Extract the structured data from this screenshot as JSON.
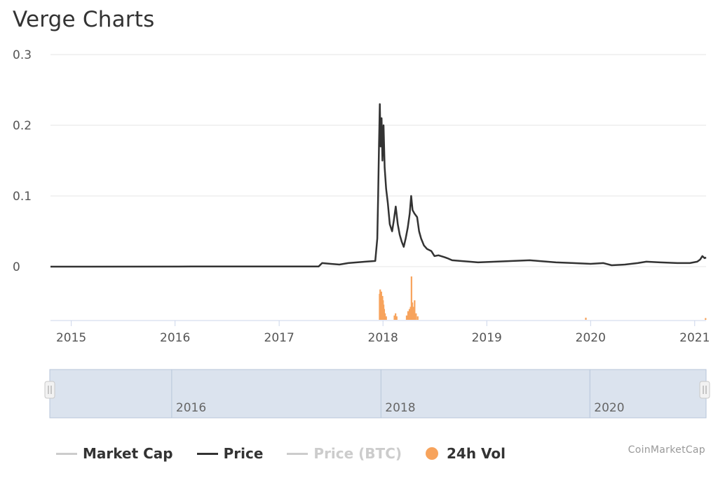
{
  "page": {
    "title": "Verge Charts",
    "credit": "CoinMarketCap"
  },
  "colors": {
    "price": "#333333",
    "volume": "#f7a35c",
    "market_cap": "#cccccc",
    "price_btc": "#cccccc",
    "grid": "#e6e6e6",
    "navigator_fill": "#dbe3ee",
    "navigator_border": "#b7c6d9"
  },
  "legend": {
    "items": [
      {
        "label": "Market Cap",
        "marker": "line",
        "color": "#cccccc",
        "text_color": "#333333"
      },
      {
        "label": "Price",
        "marker": "line",
        "color": "#333333",
        "text_color": "#333333"
      },
      {
        "label": "Price (BTC)",
        "marker": "line",
        "color": "#cccccc",
        "text_color": "#cccccc"
      },
      {
        "label": "24h Vol",
        "marker": "dot",
        "color": "#f7a35c",
        "text_color": "#333333"
      }
    ]
  },
  "navigator": {
    "labels": [
      "2016",
      "2018",
      "2020"
    ],
    "range": [
      "2014-11-01",
      "2021-02-10"
    ]
  },
  "chart_data": {
    "type": "line",
    "title": "Verge Charts",
    "x_axis": {
      "type": "date",
      "range": [
        "2014-10-20",
        "2021-02-10"
      ],
      "ticks": [
        "2015",
        "2016",
        "2017",
        "2018",
        "2019",
        "2020",
        "2021"
      ]
    },
    "y_axis": {
      "range": [
        0,
        0.3
      ],
      "ticks": [
        "0",
        "0.1",
        "0.2",
        "0.3"
      ],
      "grid": true
    },
    "series": [
      {
        "name": "Price",
        "color": "#333333",
        "points": [
          [
            "2014-10-20",
            0.0
          ],
          [
            "2016-03-01",
            0.0002
          ],
          [
            "2017-05-20",
            0.0003
          ],
          [
            "2017-06-01",
            0.005
          ],
          [
            "2017-07-01",
            0.004
          ],
          [
            "2017-08-01",
            0.003
          ],
          [
            "2017-09-01",
            0.005
          ],
          [
            "2017-10-01",
            0.006
          ],
          [
            "2017-11-01",
            0.007
          ],
          [
            "2017-12-05",
            0.008
          ],
          [
            "2017-12-12",
            0.04
          ],
          [
            "2017-12-15",
            0.1
          ],
          [
            "2017-12-18",
            0.17
          ],
          [
            "2017-12-21",
            0.23
          ],
          [
            "2017-12-24",
            0.17
          ],
          [
            "2017-12-27",
            0.21
          ],
          [
            "2017-12-30",
            0.15
          ],
          [
            "2018-01-03",
            0.2
          ],
          [
            "2018-01-07",
            0.14
          ],
          [
            "2018-01-12",
            0.11
          ],
          [
            "2018-01-18",
            0.09
          ],
          [
            "2018-01-25",
            0.06
          ],
          [
            "2018-02-02",
            0.05
          ],
          [
            "2018-02-08",
            0.065
          ],
          [
            "2018-02-15",
            0.085
          ],
          [
            "2018-02-22",
            0.06
          ],
          [
            "2018-03-01",
            0.045
          ],
          [
            "2018-03-08",
            0.035
          ],
          [
            "2018-03-15",
            0.028
          ],
          [
            "2018-03-22",
            0.04
          ],
          [
            "2018-03-29",
            0.055
          ],
          [
            "2018-04-05",
            0.075
          ],
          [
            "2018-04-10",
            0.1
          ],
          [
            "2018-04-15",
            0.08
          ],
          [
            "2018-04-22",
            0.075
          ],
          [
            "2018-05-01",
            0.07
          ],
          [
            "2018-05-08",
            0.05
          ],
          [
            "2018-05-15",
            0.04
          ],
          [
            "2018-05-25",
            0.03
          ],
          [
            "2018-06-05",
            0.025
          ],
          [
            "2018-06-20",
            0.022
          ],
          [
            "2018-07-01",
            0.015
          ],
          [
            "2018-07-15",
            0.016
          ],
          [
            "2018-08-01",
            0.014
          ],
          [
            "2018-08-15",
            0.012
          ],
          [
            "2018-09-01",
            0.009
          ],
          [
            "2018-10-01",
            0.008
          ],
          [
            "2018-11-01",
            0.007
          ],
          [
            "2018-12-01",
            0.006
          ],
          [
            "2019-02-01",
            0.007
          ],
          [
            "2019-04-01",
            0.008
          ],
          [
            "2019-06-01",
            0.009
          ],
          [
            "2019-07-01",
            0.008
          ],
          [
            "2019-09-01",
            0.006
          ],
          [
            "2019-11-01",
            0.005
          ],
          [
            "2020-01-01",
            0.004
          ],
          [
            "2020-02-15",
            0.005
          ],
          [
            "2020-03-15",
            0.002
          ],
          [
            "2020-05-01",
            0.003
          ],
          [
            "2020-06-15",
            0.005
          ],
          [
            "2020-07-15",
            0.007
          ],
          [
            "2020-09-01",
            0.006
          ],
          [
            "2020-11-01",
            0.005
          ],
          [
            "2020-12-15",
            0.005
          ],
          [
            "2021-01-10",
            0.007
          ],
          [
            "2021-01-20",
            0.01
          ],
          [
            "2021-01-28",
            0.015
          ],
          [
            "2021-02-05",
            0.012
          ],
          [
            "2021-02-10",
            0.013
          ]
        ]
      },
      {
        "name": "24h Vol",
        "color": "#f7a35c",
        "type": "bar",
        "relative_heights": [
          [
            "2017-12-20",
            0.6
          ],
          [
            "2017-12-22",
            0.7
          ],
          [
            "2017-12-24",
            0.55
          ],
          [
            "2017-12-26",
            0.65
          ],
          [
            "2017-12-28",
            0.5
          ],
          [
            "2017-12-30",
            0.55
          ],
          [
            "2018-01-01",
            0.45
          ],
          [
            "2018-01-03",
            0.35
          ],
          [
            "2018-01-05",
            0.25
          ],
          [
            "2018-01-08",
            0.15
          ],
          [
            "2018-01-12",
            0.08
          ],
          [
            "2018-02-10",
            0.1
          ],
          [
            "2018-02-14",
            0.15
          ],
          [
            "2018-02-18",
            0.08
          ],
          [
            "2018-03-25",
            0.1
          ],
          [
            "2018-03-30",
            0.2
          ],
          [
            "2018-04-04",
            0.25
          ],
          [
            "2018-04-08",
            0.3
          ],
          [
            "2018-04-11",
            1.0
          ],
          [
            "2018-04-14",
            0.4
          ],
          [
            "2018-04-18",
            0.3
          ],
          [
            "2018-04-22",
            0.45
          ],
          [
            "2018-04-27",
            0.15
          ],
          [
            "2018-05-03",
            0.08
          ],
          [
            "2019-12-15",
            0.05
          ],
          [
            "2021-02-08",
            0.04
          ]
        ]
      }
    ]
  }
}
